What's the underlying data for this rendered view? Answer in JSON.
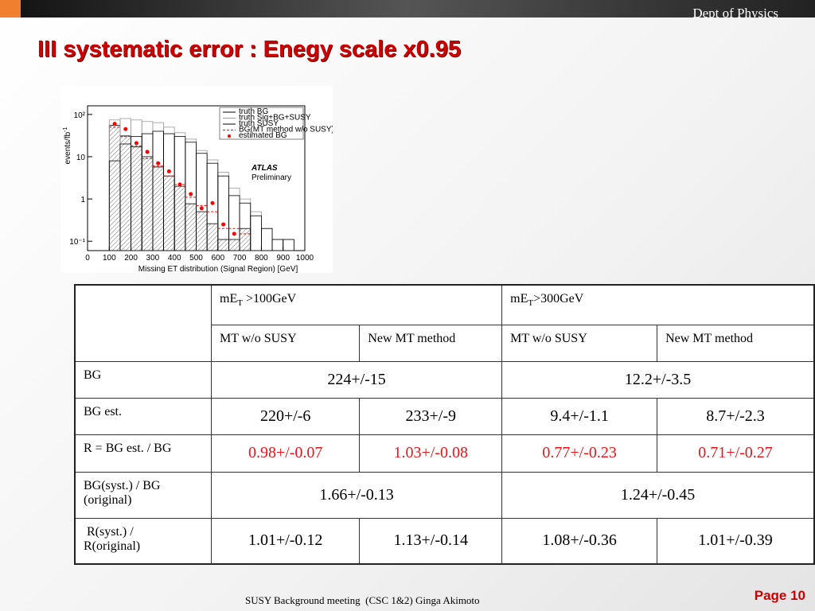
{
  "header": {
    "dept": "Dept of Physics",
    "title": "III systematic error : Enegy scale x0.95"
  },
  "figure": {
    "type": "histogram",
    "y_label": "events/fb",
    "y_label_sup": "-1",
    "x_label": "Missing  ET distribution (Signal Region) [GeV]",
    "annotations": [
      "ATLAS",
      "Preliminary"
    ],
    "bins": [
      100,
      150,
      200,
      250,
      300,
      350,
      400,
      450,
      500,
      550,
      600,
      650,
      700,
      750,
      800,
      850,
      900,
      950,
      1000
    ],
    "log_y": true,
    "xlim": [
      0,
      1000
    ],
    "ylim": [
      0.06,
      160
    ],
    "xticks": [
      0,
      100,
      200,
      300,
      400,
      500,
      600,
      700,
      800,
      900,
      1000
    ],
    "yticks": [
      {
        "value": 0.1,
        "label": "10⁻¹"
      },
      1,
      10,
      {
        "value": 100,
        "label": "10²"
      }
    ],
    "series": [
      {
        "name": "truth BG",
        "color": "#000000",
        "style": "hatched",
        "values": [
          55,
          31,
          17,
          10,
          5.7,
          3.5,
          2,
          0.77,
          0.5,
          0.26,
          0.11,
          0.11,
          0.2,
          null,
          null,
          null,
          null,
          null
        ]
      },
      {
        "name": "truth Sig+BG+SUSY",
        "color": "#999999",
        "style": "outline",
        "values": [
          74,
          80,
          74,
          68,
          64,
          50,
          37,
          26,
          14,
          8.4,
          4.3,
          1.8,
          1,
          0.5,
          0.2,
          0.11,
          0.11,
          null
        ]
      },
      {
        "name": "truth SUSY",
        "color": "#000000",
        "style": "outline",
        "values": [
          8,
          20,
          30,
          35,
          40,
          35,
          30,
          22,
          12,
          7,
          3.5,
          1.2,
          0.8,
          0.4,
          0.2,
          0.11,
          0.11,
          null
        ]
      },
      {
        "name": "BG(MT method w/o SUSY)",
        "color": "#ff0000",
        "style": "dashed",
        "values": [
          50,
          30,
          18,
          9,
          6,
          3.5,
          2.2,
          1.1,
          0.7,
          0.5,
          0.2,
          0.2,
          0.15,
          null,
          null,
          null,
          null,
          null
        ]
      },
      {
        "name": "estimated BG",
        "color": "#ff0000",
        "style": "points",
        "values": [
          60,
          45,
          21,
          13,
          7,
          4.5,
          2.2,
          1.3,
          0.6,
          0.8,
          0.25,
          0.15,
          null,
          null,
          null,
          null,
          null,
          null
        ]
      }
    ]
  },
  "table": {
    "groups": [
      {
        "pre": "mE",
        "sub": "T",
        "post": " >100GeV"
      },
      {
        "pre": "mE",
        "sub": "T",
        "post": ">300GeV"
      }
    ],
    "methods": [
      "MT w/o SUSY",
      "New MT method",
      "MT w/o SUSY",
      "New MT method"
    ],
    "highlight_color": "#e8141a",
    "rows": [
      {
        "label": [
          "BG"
        ],
        "merged": true,
        "cells": [
          "224+/-15",
          "12.2+/-3.5"
        ]
      },
      {
        "label": [
          "BG est."
        ],
        "cells": [
          "220+/-6",
          "233+/-9",
          "9.4+/-1.1",
          "8.7+/-2.3"
        ]
      },
      {
        "label": [
          "R = BG est. / BG"
        ],
        "highlight": true,
        "cells": [
          "0.98+/-0.07",
          "1.03+/-0.08",
          "0.77+/-0.23",
          "0.71+/-0.27"
        ]
      },
      {
        "label": [
          "BG(syst.) / BG",
          "(original)"
        ],
        "merged": true,
        "cells": [
          "1.66+/-0.13",
          "1.24+/-0.45"
        ]
      },
      {
        "label": [
          " R(syst.) /",
          "R(original)"
        ],
        "cells": [
          "1.01+/-0.12",
          "1.13+/-0.14",
          "1.08+/-0.36",
          "1.01+/-0.39"
        ]
      }
    ]
  },
  "footer": {
    "meeting": "SUSY Background meeting  (CSC 1&2) Ginga Akimoto",
    "page": "Page 10"
  }
}
